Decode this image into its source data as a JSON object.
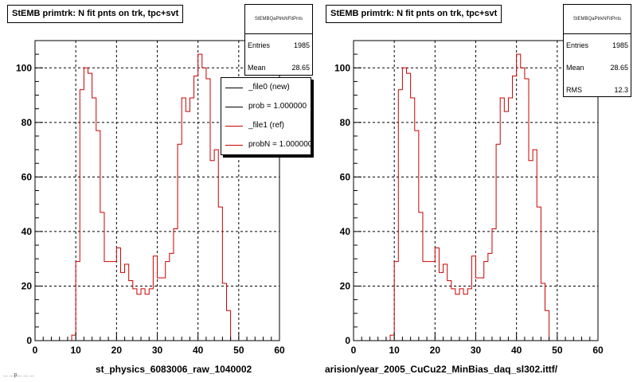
{
  "panels": [
    {
      "title": "StEMB primtrk: N fit pnts on trk, tpc+svt",
      "xlabel": "st_physics_6083006_raw_1040002",
      "stats": {
        "name": "StEMBQaPtrkNFitPnts",
        "rows": [
          {
            "label": "Entries",
            "value": "1985"
          },
          {
            "label": "Mean",
            "value": "28.65"
          }
        ]
      },
      "legend": [
        {
          "label": "_file0 (new)",
          "color": "#000000"
        },
        {
          "label": "prob = 1.000000",
          "color": "#000000"
        },
        {
          "label": "_file1 (ref)",
          "color": "#cc0000"
        },
        {
          "label": "probN = 1.000000",
          "color": "#cc0000"
        }
      ]
    },
    {
      "title": "StEMB primtrk: N fit pnts on trk, tpc+svt",
      "xlabel": "arision/year_2005_CuCu22_MinBias_daq_sl302.ittf/",
      "stats": {
        "name": "StEMBQaPtrkNFitPnts",
        "rows": [
          {
            "label": "Entries",
            "value": "1985"
          },
          {
            "label": "Mean",
            "value": "28.65"
          },
          {
            "label": "RMS",
            "value": "12.3"
          }
        ]
      },
      "legend": []
    }
  ],
  "footer_text": "... ...p... ... ...",
  "chart_data": [
    {
      "type": "line",
      "subtype": "step-histogram",
      "title": "StEMB primtrk: N fit pnts on trk, tpc+svt",
      "xlabel": "st_physics_6083006_raw_1040002",
      "ylabel": "",
      "xlim": [
        0,
        60
      ],
      "ylim": [
        0,
        110
      ],
      "xticks": [
        0,
        10,
        20,
        30,
        40,
        50,
        60
      ],
      "yticks": [
        0,
        20,
        40,
        60,
        80,
        100
      ],
      "grid": true,
      "legend_position": "top-right",
      "bin_width": 1,
      "series": [
        {
          "color": "#cc0000",
          "x": [
            0,
            1,
            2,
            3,
            4,
            5,
            6,
            7,
            8,
            9,
            10,
            11,
            12,
            13,
            14,
            15,
            16,
            17,
            18,
            19,
            20,
            21,
            22,
            23,
            24,
            25,
            26,
            27,
            28,
            29,
            30,
            31,
            32,
            33,
            34,
            35,
            36,
            37,
            38,
            39,
            40,
            41,
            42,
            43,
            44,
            45,
            46,
            47,
            48,
            49,
            50,
            51,
            52,
            53,
            54,
            55,
            56,
            57,
            58,
            59
          ],
          "values": [
            0,
            0,
            0,
            0,
            0,
            0,
            0,
            0,
            0,
            2,
            29,
            92,
            100,
            98,
            89,
            77,
            47,
            29,
            29,
            29,
            34,
            25,
            28,
            22,
            19,
            17,
            19,
            17,
            19,
            31,
            23,
            23,
            29,
            32,
            41,
            72,
            89,
            84,
            89,
            97,
            105,
            100,
            96,
            66,
            70,
            49,
            21,
            11,
            0,
            0,
            0,
            0,
            0,
            0,
            0,
            0,
            0,
            0,
            0,
            0
          ]
        }
      ]
    },
    {
      "type": "line",
      "subtype": "step-histogram",
      "title": "StEMB primtrk: N fit pnts on trk, tpc+svt",
      "xlabel": "arision/year_2005_CuCu22_MinBias_daq_sl302.ittf/",
      "ylabel": "",
      "xlim": [
        0,
        60
      ],
      "ylim": [
        0,
        110
      ],
      "xticks": [
        0,
        10,
        20,
        30,
        40,
        50,
        60
      ],
      "yticks": [
        0,
        20,
        40,
        60,
        80,
        100
      ],
      "grid": true,
      "bin_width": 1,
      "series": [
        {
          "color": "#cc0000",
          "x": [
            0,
            1,
            2,
            3,
            4,
            5,
            6,
            7,
            8,
            9,
            10,
            11,
            12,
            13,
            14,
            15,
            16,
            17,
            18,
            19,
            20,
            21,
            22,
            23,
            24,
            25,
            26,
            27,
            28,
            29,
            30,
            31,
            32,
            33,
            34,
            35,
            36,
            37,
            38,
            39,
            40,
            41,
            42,
            43,
            44,
            45,
            46,
            47,
            48,
            49,
            50,
            51,
            52,
            53,
            54,
            55,
            56,
            57,
            58,
            59
          ],
          "values": [
            0,
            0,
            0,
            0,
            0,
            0,
            0,
            0,
            0,
            2,
            29,
            92,
            100,
            98,
            89,
            77,
            47,
            29,
            29,
            29,
            34,
            25,
            28,
            22,
            19,
            17,
            19,
            17,
            19,
            31,
            23,
            23,
            29,
            32,
            41,
            72,
            89,
            84,
            89,
            97,
            105,
            100,
            96,
            66,
            70,
            49,
            21,
            11,
            0,
            0,
            0,
            0,
            0,
            0,
            0,
            0,
            0,
            0,
            0,
            0
          ]
        }
      ]
    }
  ]
}
